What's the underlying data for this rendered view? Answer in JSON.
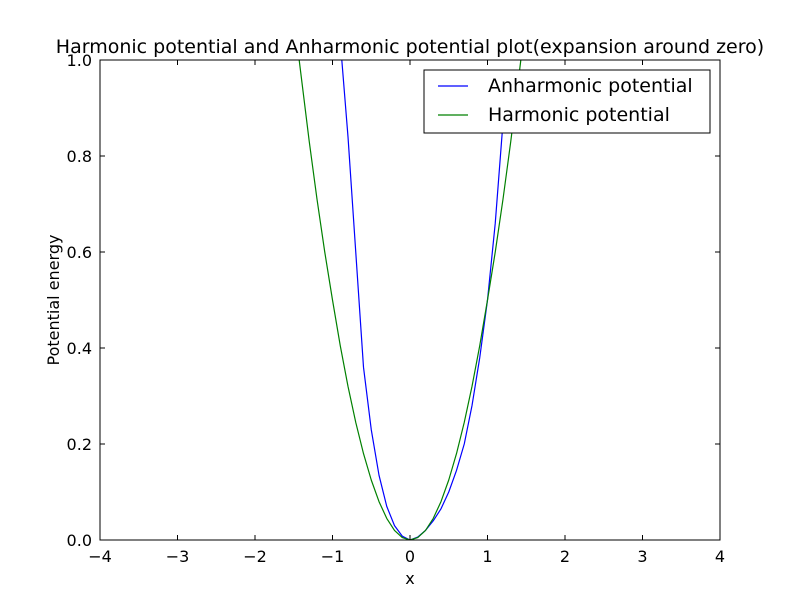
{
  "chart_data": {
    "type": "line",
    "title": "Harmonic potential and Anharmonic potential plot(expansion around zero)",
    "xlabel": "x",
    "ylabel": "Potential energy",
    "xlim": [
      -4,
      4
    ],
    "ylim": [
      0.0,
      1.0
    ],
    "xticks": [
      -4,
      -3,
      -2,
      -1,
      0,
      1,
      2,
      3,
      4
    ],
    "xtick_labels": [
      "−4",
      "−3",
      "−2",
      "−1",
      "0",
      "1",
      "2",
      "3",
      "4"
    ],
    "yticks": [
      0.0,
      0.2,
      0.4,
      0.6,
      0.8,
      1.0
    ],
    "ytick_labels": [
      "0.0",
      "0.2",
      "0.4",
      "0.6",
      "0.8",
      "1.0"
    ],
    "grid": false,
    "legend_position": "top-right",
    "series": [
      {
        "name": "Anharmonic potential",
        "color": "#0000ff",
        "x": [
          -0.88,
          -0.8,
          -0.7,
          -0.6,
          -0.5,
          -0.4,
          -0.3,
          -0.2,
          -0.1,
          0.0,
          0.1,
          0.2,
          0.3,
          0.4,
          0.5,
          0.6,
          0.7,
          0.8,
          0.9,
          1.0,
          1.1,
          1.2,
          1.23
        ],
        "y": [
          1.0,
          0.84,
          0.6,
          0.36,
          0.23,
          0.135,
          0.07,
          0.03,
          0.008,
          0.0,
          0.006,
          0.02,
          0.04,
          0.065,
          0.1,
          0.145,
          0.2,
          0.28,
          0.38,
          0.5,
          0.66,
          0.87,
          0.96
        ]
      },
      {
        "name": "Harmonic potential",
        "color": "#008000",
        "x": [
          -1.43,
          -1.3,
          -1.2,
          -1.1,
          -1.0,
          -0.9,
          -0.8,
          -0.7,
          -0.6,
          -0.5,
          -0.4,
          -0.3,
          -0.2,
          -0.1,
          0.0,
          0.1,
          0.2,
          0.3,
          0.4,
          0.5,
          0.6,
          0.7,
          0.8,
          0.9,
          1.0,
          1.1,
          1.2,
          1.3,
          1.4,
          1.43
        ],
        "y": [
          1.0,
          0.83,
          0.71,
          0.6,
          0.5,
          0.405,
          0.32,
          0.245,
          0.18,
          0.125,
          0.08,
          0.045,
          0.02,
          0.005,
          0.0,
          0.005,
          0.02,
          0.045,
          0.08,
          0.125,
          0.18,
          0.245,
          0.32,
          0.405,
          0.5,
          0.6,
          0.71,
          0.83,
          0.96,
          1.0
        ]
      }
    ]
  }
}
